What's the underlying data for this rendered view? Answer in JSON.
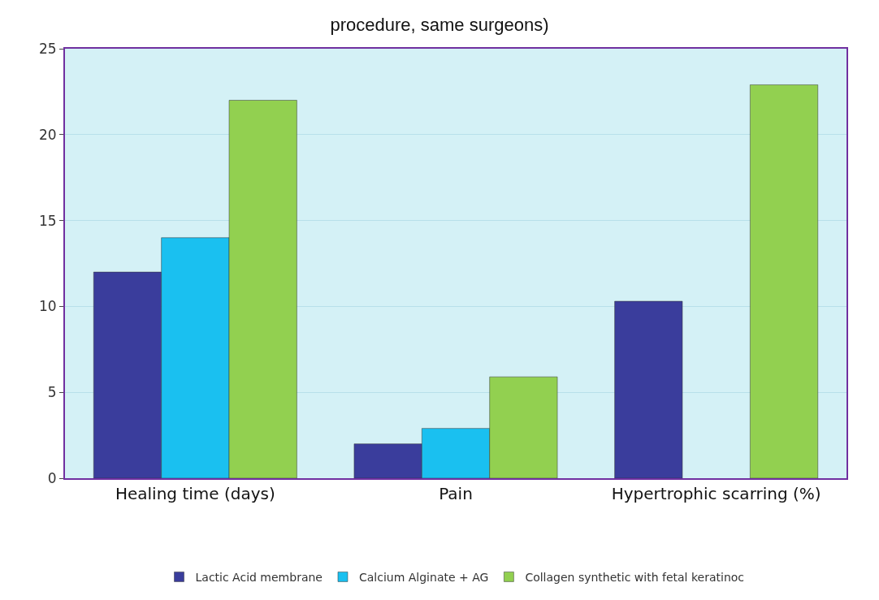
{
  "chart_data": {
    "type": "bar",
    "title": "procedure, same surgeons)",
    "categories": [
      "Healing time (days)",
      "Pain",
      "Hypertrophic scarring (%)"
    ],
    "series": [
      {
        "name": "Lactic Acid membrane",
        "color": "#3a3d9c",
        "values": [
          12,
          2,
          10.3
        ]
      },
      {
        "name": "Calcium Alginate + AG",
        "color": "#1ac0f0",
        "values": [
          14,
          2.9,
          null
        ]
      },
      {
        "name": "Collagen synthetic with fetal keratinoc",
        "color": "#92d050",
        "values": [
          22,
          5.9,
          22.9
        ]
      }
    ],
    "ylim": [
      0,
      25
    ],
    "yticks": [
      0,
      5,
      10,
      15,
      20,
      25
    ],
    "grid": "y",
    "legend": "bottom"
  }
}
